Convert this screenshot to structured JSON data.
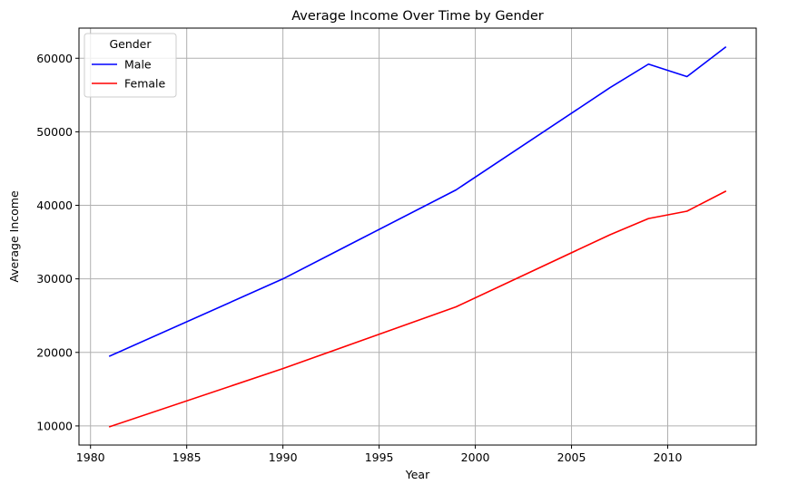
{
  "chart_data": {
    "type": "line",
    "title": "Average Income Over Time by Gender",
    "xlabel": "Year",
    "ylabel": "Average Income",
    "xlim": [
      1979.4,
      2014.6
    ],
    "ylim": [
      7400,
      64100
    ],
    "xticks": [
      1980,
      1985,
      1990,
      1995,
      2000,
      2005,
      2010
    ],
    "yticks": [
      10000,
      20000,
      30000,
      40000,
      50000,
      60000
    ],
    "grid": true,
    "legend": {
      "title": "Gender",
      "placement": "top-left"
    },
    "series": [
      {
        "name": "Male",
        "color": "#0000ff",
        "x": [
          1981,
          1990,
          1999,
          2007,
          2009,
          2011,
          2013
        ],
        "y": [
          19500,
          30000,
          42100,
          56000,
          59200,
          57500,
          61500
        ]
      },
      {
        "name": "Female",
        "color": "#ff0000",
        "x": [
          1981,
          1990,
          1999,
          2007,
          2009,
          2011,
          2013
        ],
        "y": [
          9900,
          17800,
          26200,
          36000,
          38200,
          39200,
          41900
        ]
      }
    ]
  }
}
